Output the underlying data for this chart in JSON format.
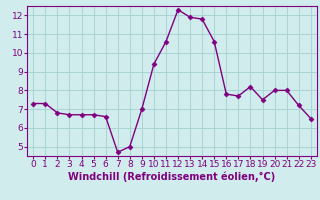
{
  "x": [
    0,
    1,
    2,
    3,
    4,
    5,
    6,
    7,
    8,
    9,
    10,
    11,
    12,
    13,
    14,
    15,
    16,
    17,
    18,
    19,
    20,
    21,
    22,
    23
  ],
  "y": [
    7.3,
    7.3,
    6.8,
    6.7,
    6.7,
    6.7,
    6.6,
    4.7,
    5.0,
    7.0,
    9.4,
    10.6,
    12.3,
    11.9,
    11.8,
    10.6,
    7.8,
    7.7,
    8.2,
    7.5,
    8.0,
    8.0,
    7.2,
    6.5
  ],
  "line_color": "#800080",
  "marker": "D",
  "marker_size": 2.5,
  "line_width": 1.0,
  "xlabel": "Windchill (Refroidissement éolien,°C)",
  "xlabel_fontsize": 7,
  "xlim": [
    -0.5,
    23.5
  ],
  "ylim": [
    4.5,
    12.5
  ],
  "yticks": [
    5,
    6,
    7,
    8,
    9,
    10,
    11,
    12
  ],
  "xticks": [
    0,
    1,
    2,
    3,
    4,
    5,
    6,
    7,
    8,
    9,
    10,
    11,
    12,
    13,
    14,
    15,
    16,
    17,
    18,
    19,
    20,
    21,
    22,
    23
  ],
  "grid_color": "#aad4d4",
  "bg_color": "#d0ecec",
  "tick_color": "#800080",
  "tick_fontsize": 6.5,
  "spine_color": "#800080",
  "xlabel_color": "#800080"
}
